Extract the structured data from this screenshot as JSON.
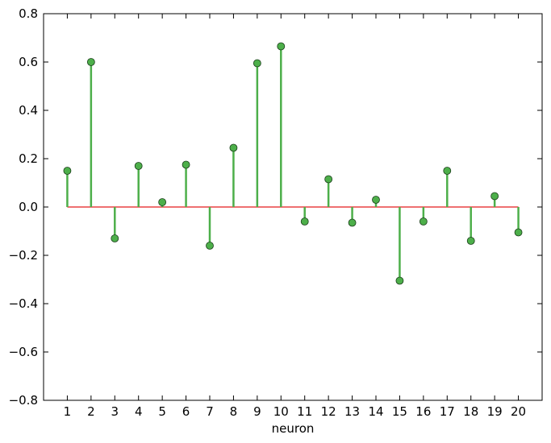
{
  "chart_data": {
    "type": "stem",
    "title": "",
    "xlabel": "neuron",
    "ylabel": "",
    "x": [
      1,
      2,
      3,
      4,
      5,
      6,
      7,
      8,
      9,
      10,
      11,
      12,
      13,
      14,
      15,
      16,
      17,
      18,
      19,
      20
    ],
    "values": [
      0.15,
      0.6,
      -0.13,
      0.17,
      0.02,
      0.175,
      -0.16,
      0.245,
      0.595,
      0.665,
      -0.06,
      0.115,
      -0.065,
      0.03,
      -0.305,
      -0.06,
      0.15,
      -0.14,
      0.045,
      -0.105
    ],
    "xlim": [
      0,
      21
    ],
    "ylim": [
      -0.8,
      0.8
    ],
    "x_ticks": [
      "1",
      "2",
      "3",
      "4",
      "5",
      "6",
      "7",
      "8",
      "9",
      "10",
      "11",
      "12",
      "13",
      "14",
      "15",
      "16",
      "17",
      "18",
      "19",
      "20"
    ],
    "y_ticks": [
      -0.8,
      -0.6,
      -0.4,
      -0.2,
      0.0,
      0.2,
      0.4,
      0.6,
      0.8
    ],
    "y_tick_labels": [
      "−0.8",
      "−0.6",
      "−0.4",
      "−0.2",
      "0.0",
      "0.2",
      "0.4",
      "0.6",
      "0.8"
    ],
    "baseline": 0.0,
    "colors": {
      "stem": "#4daf4a",
      "marker_fill": "#4daf4a",
      "marker_edge": "#1a3d1a",
      "baseline": "#e41a1c"
    },
    "grid": false,
    "legend": "none"
  }
}
